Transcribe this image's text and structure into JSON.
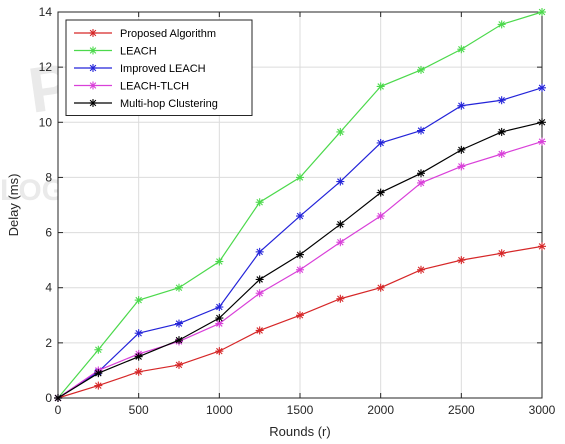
{
  "chart_data": {
    "type": "line",
    "title": "",
    "xlabel": "Rounds (r)",
    "ylabel": "Delay (ms)",
    "xlim": [
      0,
      3000
    ],
    "ylim": [
      0,
      14
    ],
    "xticks": [
      0,
      500,
      1000,
      1500,
      2000,
      2500,
      3000
    ],
    "yticks": [
      0,
      2,
      4,
      6,
      8,
      10,
      12,
      14
    ],
    "grid": true,
    "legend_position": "top-left",
    "marker": "asterisk",
    "x": [
      0,
      250,
      500,
      750,
      1000,
      1250,
      1500,
      1750,
      2000,
      2250,
      2500,
      2750,
      3000
    ],
    "series": [
      {
        "name": "Proposed Algorithm",
        "color": "#d62728",
        "values": [
          0,
          0.45,
          0.95,
          1.2,
          1.7,
          2.45,
          3.0,
          3.6,
          4.0,
          4.65,
          5.0,
          5.25,
          5.5
        ]
      },
      {
        "name": "LEACH",
        "color": "#4cd94c",
        "values": [
          0,
          1.75,
          3.55,
          4.0,
          4.95,
          7.1,
          8.0,
          9.65,
          11.3,
          11.9,
          12.65,
          13.55,
          14.0
        ]
      },
      {
        "name": "Improved LEACH",
        "color": "#2424d9",
        "values": [
          0,
          0.95,
          2.35,
          2.7,
          3.3,
          5.3,
          6.6,
          7.85,
          9.25,
          9.7,
          10.6,
          10.8,
          11.25
        ]
      },
      {
        "name": "LEACH-TLCH",
        "color": "#d940d9",
        "values": [
          0,
          1.0,
          1.6,
          2.05,
          2.7,
          3.8,
          4.65,
          5.65,
          6.6,
          7.8,
          8.4,
          8.85,
          9.3
        ]
      },
      {
        "name": "Multi-hop Clustering",
        "color": "#000000",
        "values": [
          0,
          0.9,
          1.5,
          2.1,
          2.9,
          4.3,
          5.2,
          6.3,
          7.45,
          8.15,
          9.0,
          9.65,
          10.0
        ]
      }
    ]
  }
}
